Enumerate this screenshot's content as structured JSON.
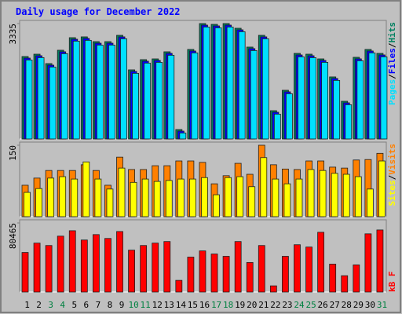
{
  "chart_data": [
    {
      "type": "bar",
      "title": "Daily usage for December 2022",
      "ylim": [
        0,
        3335
      ],
      "yticks": [
        3335
      ],
      "legend_separator": "/",
      "series": [
        {
          "name": "Hits",
          "color": "#008060",
          "values": [
            2382,
            2450,
            2178,
            2564,
            2927,
            2950,
            2813,
            2813,
            2995,
            1997,
            2292,
            2314,
            2519,
            272,
            2587,
            3335,
            3312,
            3335,
            3199,
            2655,
            2995,
            817,
            1407,
            2473,
            2450,
            2314,
            1793,
            1089,
            2360,
            2587,
            2473
          ]
        },
        {
          "name": "Files",
          "color": "#0000ff",
          "values": [
            2337,
            2405,
            2133,
            2519,
            2882,
            2905,
            2768,
            2768,
            2950,
            1952,
            2247,
            2269,
            2474,
            227,
            2542,
            3290,
            3267,
            3290,
            3154,
            2610,
            2950,
            772,
            1362,
            2428,
            2405,
            2269,
            1748,
            1044,
            2315,
            2542,
            2428
          ]
        },
        {
          "name": "Pages",
          "color": "#00e0ff",
          "values": [
            2282,
            2350,
            2078,
            2464,
            2827,
            2850,
            2713,
            2713,
            2895,
            1897,
            2192,
            2214,
            2419,
            172,
            2487,
            3235,
            3212,
            3235,
            3099,
            2555,
            2895,
            717,
            1307,
            2373,
            2350,
            2214,
            1693,
            989,
            2260,
            2487,
            2373
          ]
        }
      ]
    },
    {
      "type": "bar",
      "ylim": [
        0,
        150
      ],
      "yticks": [
        150
      ],
      "legend_separator": "/",
      "series": [
        {
          "name": "Visits",
          "color": "#ff8000",
          "values": [
            66,
            81,
            97,
            97,
            97,
            109,
            97,
            66,
            125,
            99,
            99,
            107,
            107,
            117,
            117,
            114,
            69,
            86,
            112,
            89,
            150,
            109,
            100,
            99,
            117,
            117,
            104,
            102,
            119,
            120,
            133
          ]
        },
        {
          "name": "Sites",
          "color": "#ffff00",
          "values": [
            51,
            59,
            81,
            84,
            79,
            115,
            79,
            58,
            102,
            72,
            79,
            74,
            76,
            79,
            79,
            82,
            46,
            82,
            84,
            63,
            124,
            79,
            69,
            79,
            99,
            97,
            91,
            89,
            84,
            58,
            117
          ]
        }
      ]
    },
    {
      "type": "bar",
      "ylim": [
        0,
        80465
      ],
      "yticks": [
        80465
      ],
      "categories": [
        "1",
        "2",
        "3",
        "4",
        "5",
        "6",
        "7",
        "8",
        "9",
        "10",
        "11",
        "12",
        "13",
        "14",
        "15",
        "16",
        "17",
        "18",
        "19",
        "20",
        "21",
        "22",
        "23",
        "24",
        "25",
        "26",
        "27",
        "28",
        "29",
        "30",
        "31"
      ],
      "weekend": [
        false,
        false,
        true,
        true,
        false,
        false,
        false,
        false,
        false,
        true,
        true,
        false,
        false,
        false,
        false,
        false,
        true,
        true,
        false,
        false,
        false,
        false,
        false,
        true,
        true,
        false,
        false,
        false,
        false,
        false,
        true
      ],
      "label_color": "#000000",
      "weekend_label_color": "#008040",
      "series": [
        {
          "name": "kB F",
          "color": "#ff0000",
          "values": [
            46100,
            57000,
            54200,
            65100,
            71400,
            60600,
            66900,
            62400,
            70500,
            48800,
            54200,
            57000,
            58800,
            13600,
            40700,
            47900,
            44300,
            41600,
            58800,
            34400,
            54200,
            7200,
            41600,
            55100,
            52400,
            69600,
            32500,
            19000,
            31600,
            67800,
            72300
          ]
        }
      ]
    }
  ]
}
